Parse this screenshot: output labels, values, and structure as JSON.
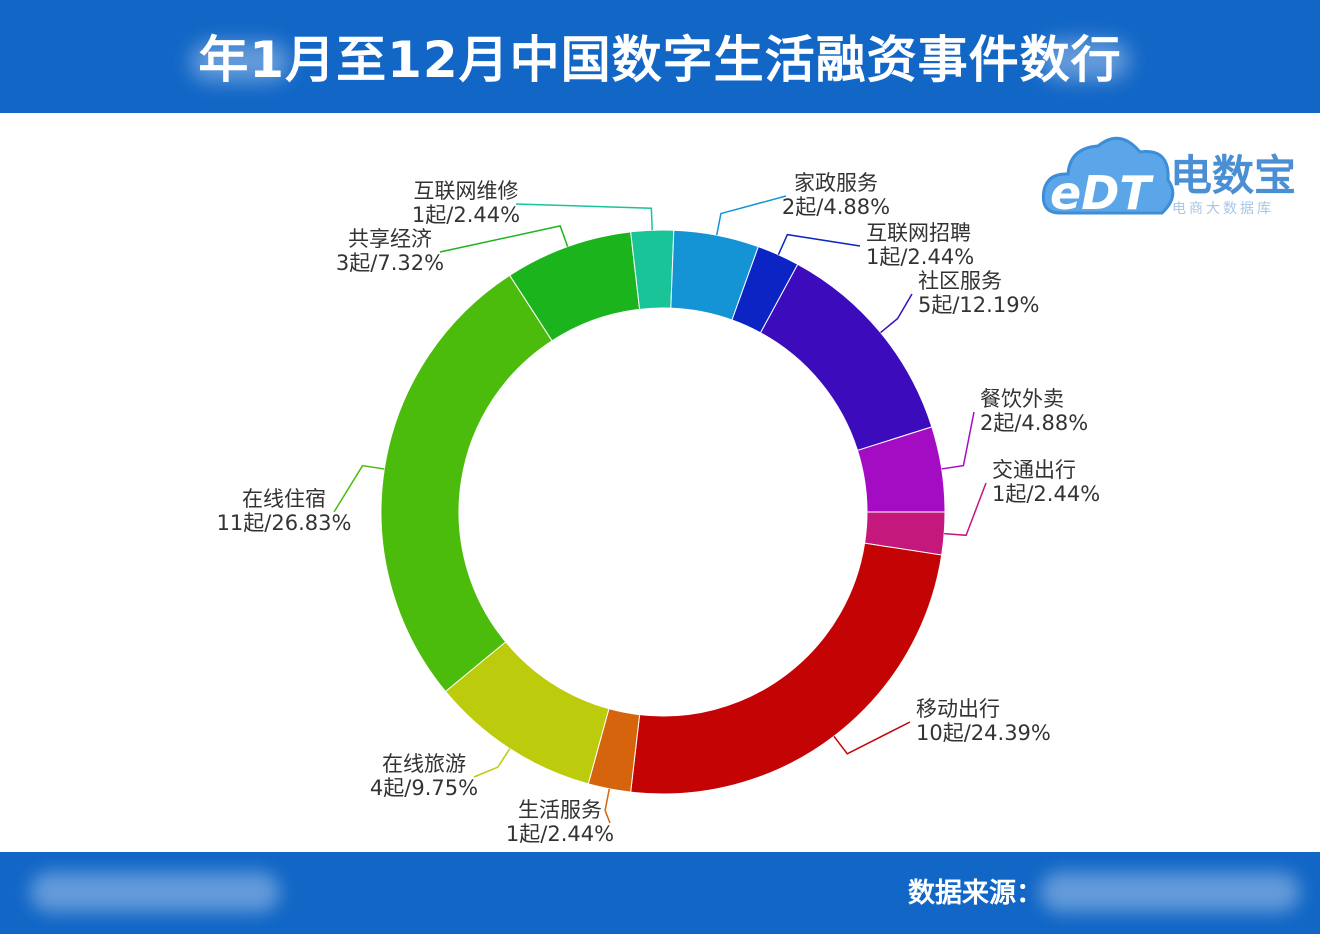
{
  "header": {
    "title": "年1月至12月中国数字生活融资事件数行"
  },
  "footer": {
    "source_label": "数据来源："
  },
  "logo": {
    "brand": "电数宝",
    "sub": "电商大数据库",
    "mark": "eDT"
  },
  "colors": {
    "header_bg": "#1166c6",
    "footer_bg": "#1166c6"
  },
  "chart_data": {
    "type": "pie",
    "style": "donut",
    "unit": "起",
    "slices": [
      {
        "name": "交通出行",
        "count": 1,
        "percent": 2.44,
        "label": "1起/2.44%",
        "color": "#c4187c"
      },
      {
        "name": "移动出行",
        "count": 10,
        "percent": 24.39,
        "label": "10起/24.39%",
        "color": "#c40404"
      },
      {
        "name": "生活服务",
        "count": 1,
        "percent": 2.44,
        "label": "1起/2.44%",
        "color": "#d6640c"
      },
      {
        "name": "在线旅游",
        "count": 4,
        "percent": 9.75,
        "label": "4起/9.75%",
        "color": "#bccc0c"
      },
      {
        "name": "在线住宿",
        "count": 11,
        "percent": 26.83,
        "label": "11起/26.83%",
        "color": "#4cbc0c"
      },
      {
        "name": "共享经济",
        "count": 3,
        "percent": 7.32,
        "label": "3起/7.32%",
        "color": "#1cb41c"
      },
      {
        "name": "互联网维修",
        "count": 1,
        "percent": 2.44,
        "label": "1起/2.44%",
        "color": "#18c498"
      },
      {
        "name": "家政服务",
        "count": 2,
        "percent": 4.88,
        "label": "2起/4.88%",
        "color": "#1494d4"
      },
      {
        "name": "互联网招聘",
        "count": 1,
        "percent": 2.44,
        "label": "1起/2.44%",
        "color": "#0c24c4"
      },
      {
        "name": "社区服务",
        "count": 5,
        "percent": 12.19,
        "label": "5起/12.19%",
        "color": "#3c0cbc"
      },
      {
        "name": "餐饮外卖",
        "count": 2,
        "percent": 4.88,
        "label": "2起/4.88%",
        "color": "#a40cc4"
      }
    ]
  }
}
